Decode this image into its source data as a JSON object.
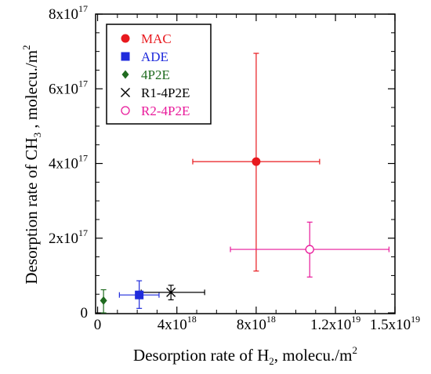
{
  "chart_data": {
    "type": "scatter",
    "title": "",
    "xlabel": {
      "prefix": "Desorption rate of H",
      "subscript": "2",
      "suffix": ", molecu./m",
      "superscript": "2"
    },
    "ylabel": {
      "prefix": "Desorption rate of CH",
      "subscript": "3",
      "suffix": " , molecu./m",
      "superscript": "2"
    },
    "xlim": [
      -1e+17,
      1.5e+19
    ],
    "ylim": [
      -2000000000000000.0,
      8e+17
    ],
    "xticks": [
      {
        "value": 0,
        "mantissa": "0",
        "exponent": ""
      },
      {
        "value": 4e+18,
        "mantissa": "4x10",
        "exponent": "18"
      },
      {
        "value": 8e+18,
        "mantissa": "8x10",
        "exponent": "18"
      },
      {
        "value": 1.2e+19,
        "mantissa": "1.2x10",
        "exponent": "19"
      },
      {
        "value": 1.5e+19,
        "mantissa": "1.5x10",
        "exponent": "19"
      }
    ],
    "yticks": [
      {
        "value": 0,
        "mantissa": "0",
        "exponent": ""
      },
      {
        "value": 2e+17,
        "mantissa": "2x10",
        "exponent": "17"
      },
      {
        "value": 4e+17,
        "mantissa": "4x10",
        "exponent": "17"
      },
      {
        "value": 6e+17,
        "mantissa": "6x10",
        "exponent": "17"
      },
      {
        "value": 8e+17,
        "mantissa": "8x10",
        "exponent": "17"
      }
    ],
    "grid": false,
    "legend_position": "top-left",
    "series": [
      {
        "name": "MAC",
        "color": "#e8191e",
        "marker": "filled-circle",
        "x": 8e+18,
        "y": 4.05e+17,
        "xerr": [
          4.8e+18,
          1.12e+19
        ],
        "yerr": [
          1.12e+17,
          6.95e+17
        ]
      },
      {
        "name": "ADE",
        "color": "#1f2bdc",
        "marker": "filled-square",
        "x": 2.1e+18,
        "y": 4.8e+16,
        "xerr": [
          1.1e+18,
          3.1e+18
        ],
        "yerr": [
          1.2e+16,
          8.6e+16
        ]
      },
      {
        "name": "4P2E",
        "color": "#1f6b1f",
        "marker": "filled-diamond",
        "x": 3e+17,
        "y": 3.3e+16,
        "xerr": null,
        "yerr": [
          0,
          6.2e+16
        ]
      },
      {
        "name": "R1-4P2E",
        "color": "#000000",
        "marker": "cross",
        "x": 3.7e+18,
        "y": 5.5e+16,
        "xerr": [
          2.2e+18,
          5.4e+18
        ],
        "yerr": [
          3.5e+16,
          7.4e+16
        ]
      },
      {
        "name": "R2-4P2E",
        "color": "#e8199a",
        "marker": "open-circle",
        "x": 1.07e+19,
        "y": 1.7e+17,
        "xerr": [
          6.7e+18,
          1.47e+19
        ],
        "yerr": [
          9.6e+16,
          2.43e+17
        ]
      }
    ]
  }
}
